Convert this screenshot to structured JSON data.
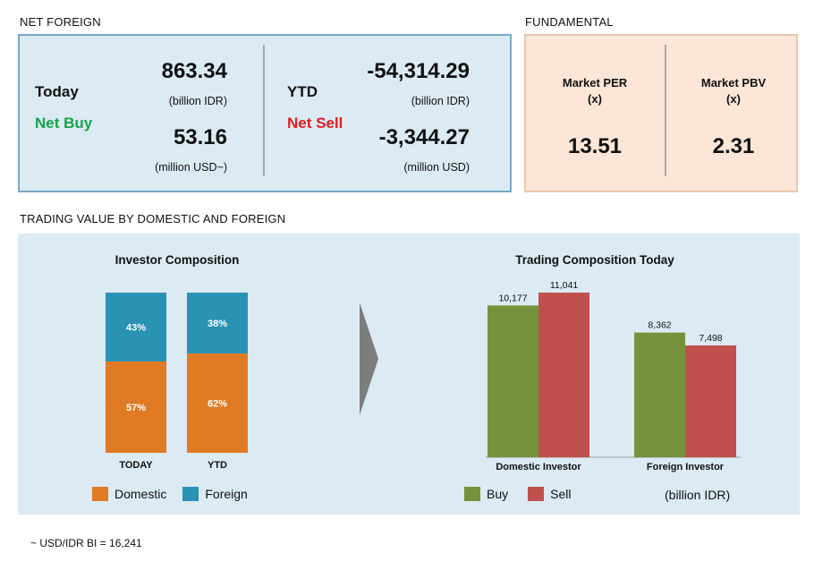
{
  "net_foreign": {
    "section_title": "NET FOREIGN",
    "today": {
      "label": "Today",
      "status": "Net Buy",
      "idr_value": "863.34",
      "idr_unit": "(billion IDR)",
      "usd_value": "53.16",
      "usd_unit": "(million USD~)"
    },
    "ytd": {
      "label": "YTD",
      "status": "Net Sell",
      "idr_value": "-54,314.29",
      "idr_unit": "(billion IDR)",
      "usd_value": "-3,344.27",
      "usd_unit": "(million USD)"
    },
    "colors": {
      "net_buy": "#16a34a",
      "net_sell": "#e51c23"
    }
  },
  "fundamental": {
    "section_title": "FUNDAMENTAL",
    "per": {
      "label_line1": "Market PER",
      "label_line2": "(x)",
      "value": "13.51"
    },
    "pbv": {
      "label_line1": "Market PBV",
      "label_line2": "(x)",
      "value": "2.31"
    }
  },
  "trading_section": {
    "section_title": "TRADING VALUE BY DOMESTIC AND FOREIGN",
    "arrow_icon": "chevron-right-icon"
  },
  "chart_data": [
    {
      "type": "bar",
      "stacked": true,
      "percent": true,
      "title": "Investor Composition",
      "categories": [
        "TODAY",
        "YTD"
      ],
      "series": [
        {
          "name": "Domestic",
          "values": [
            57,
            62
          ],
          "labels": [
            "57%",
            "62%"
          ],
          "color": "#e07b24"
        },
        {
          "name": "Foreign",
          "values": [
            43,
            38
          ],
          "labels": [
            "43%",
            "38%"
          ],
          "color": "#2a93b3"
        }
      ],
      "ylim": [
        0,
        100
      ],
      "legend": "bottom"
    },
    {
      "type": "bar",
      "title": "Trading Composition Today",
      "categories": [
        "Domestic Investor",
        "Foreign Investor"
      ],
      "series": [
        {
          "name": "Buy",
          "values": [
            10177,
            8362
          ],
          "labels": [
            "10,177",
            "8,362"
          ],
          "color": "#76923c"
        },
        {
          "name": "Sell",
          "values": [
            11041,
            7498
          ],
          "labels": [
            "11,041",
            "7,498"
          ],
          "color": "#c0504d"
        }
      ],
      "unit_note": "(billion IDR)",
      "ylim": [
        0,
        11041
      ],
      "legend": "bottom"
    }
  ],
  "footnote": "~ USD/IDR BI = 16,241"
}
